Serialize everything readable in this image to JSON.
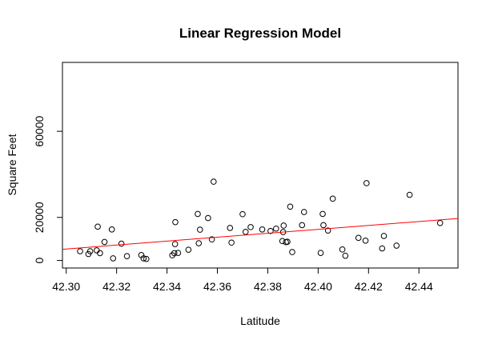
{
  "chart_data": {
    "type": "scatter",
    "title": "Linear Regression Model",
    "xlabel": "Latitude",
    "ylabel": "Square Feet",
    "xlim": [
      42.2985,
      42.4555
    ],
    "ylim": [
      -3500,
      92000
    ],
    "x_ticks": [
      42.3,
      42.32,
      42.34,
      42.36,
      42.38,
      42.4,
      42.42,
      42.44
    ],
    "x_tick_labels": [
      "42.30",
      "42.32",
      "42.34",
      "42.36",
      "42.38",
      "42.40",
      "42.42",
      "42.44"
    ],
    "y_ticks": [
      0,
      20000,
      60000
    ],
    "y_tick_labels": [
      "0",
      "20000",
      "60000"
    ],
    "grid": false,
    "colors": {
      "points": "#000000",
      "line": "#ff0000",
      "frame": "#000000"
    },
    "points": [
      {
        "x": 42.3055,
        "y": 4300
      },
      {
        "x": 42.3088,
        "y": 3000
      },
      {
        "x": 42.3095,
        "y": 4300
      },
      {
        "x": 42.3121,
        "y": 4700
      },
      {
        "x": 42.3125,
        "y": 15700
      },
      {
        "x": 42.3134,
        "y": 3400
      },
      {
        "x": 42.3152,
        "y": 8600
      },
      {
        "x": 42.3181,
        "y": 14400
      },
      {
        "x": 42.3186,
        "y": 1000
      },
      {
        "x": 42.3219,
        "y": 7800
      },
      {
        "x": 42.3241,
        "y": 2000
      },
      {
        "x": 42.3298,
        "y": 2500
      },
      {
        "x": 42.3307,
        "y": 1000
      },
      {
        "x": 42.3318,
        "y": 700
      },
      {
        "x": 42.3421,
        "y": 2400
      },
      {
        "x": 42.3429,
        "y": 3400
      },
      {
        "x": 42.3432,
        "y": 7600
      },
      {
        "x": 42.3433,
        "y": 17800
      },
      {
        "x": 42.3444,
        "y": 3500
      },
      {
        "x": 42.3485,
        "y": 5000
      },
      {
        "x": 42.3522,
        "y": 21600
      },
      {
        "x": 42.3526,
        "y": 8000
      },
      {
        "x": 42.3531,
        "y": 14300
      },
      {
        "x": 42.3563,
        "y": 19700
      },
      {
        "x": 42.3578,
        "y": 9800
      },
      {
        "x": 42.3585,
        "y": 36600
      },
      {
        "x": 42.365,
        "y": 15100
      },
      {
        "x": 42.3656,
        "y": 8300
      },
      {
        "x": 42.37,
        "y": 21500
      },
      {
        "x": 42.3712,
        "y": 13300
      },
      {
        "x": 42.3732,
        "y": 15500
      },
      {
        "x": 42.3778,
        "y": 14400
      },
      {
        "x": 42.3811,
        "y": 13700
      },
      {
        "x": 42.3833,
        "y": 14800
      },
      {
        "x": 42.3858,
        "y": 9000
      },
      {
        "x": 42.3861,
        "y": 13200
      },
      {
        "x": 42.3863,
        "y": 16200
      },
      {
        "x": 42.3872,
        "y": 8500
      },
      {
        "x": 42.3878,
        "y": 8700
      },
      {
        "x": 42.3889,
        "y": 25000
      },
      {
        "x": 42.3897,
        "y": 3900
      },
      {
        "x": 42.3936,
        "y": 16400
      },
      {
        "x": 42.3944,
        "y": 22500
      },
      {
        "x": 42.401,
        "y": 3500
      },
      {
        "x": 42.4018,
        "y": 21600
      },
      {
        "x": 42.4021,
        "y": 16400
      },
      {
        "x": 42.4039,
        "y": 13900
      },
      {
        "x": 42.4058,
        "y": 28700
      },
      {
        "x": 42.4096,
        "y": 5100
      },
      {
        "x": 42.4108,
        "y": 2200
      },
      {
        "x": 42.416,
        "y": 10500
      },
      {
        "x": 42.4188,
        "y": 9200
      },
      {
        "x": 42.4192,
        "y": 35900
      },
      {
        "x": 42.4254,
        "y": 5600
      },
      {
        "x": 42.4261,
        "y": 11400
      },
      {
        "x": 42.4311,
        "y": 6900
      },
      {
        "x": 42.4363,
        "y": 30500
      },
      {
        "x": 42.4484,
        "y": 17400
      }
    ],
    "regression_line": {
      "x": [
        42.2985,
        42.4555
      ],
      "y": [
        5200,
        19500
      ]
    }
  }
}
